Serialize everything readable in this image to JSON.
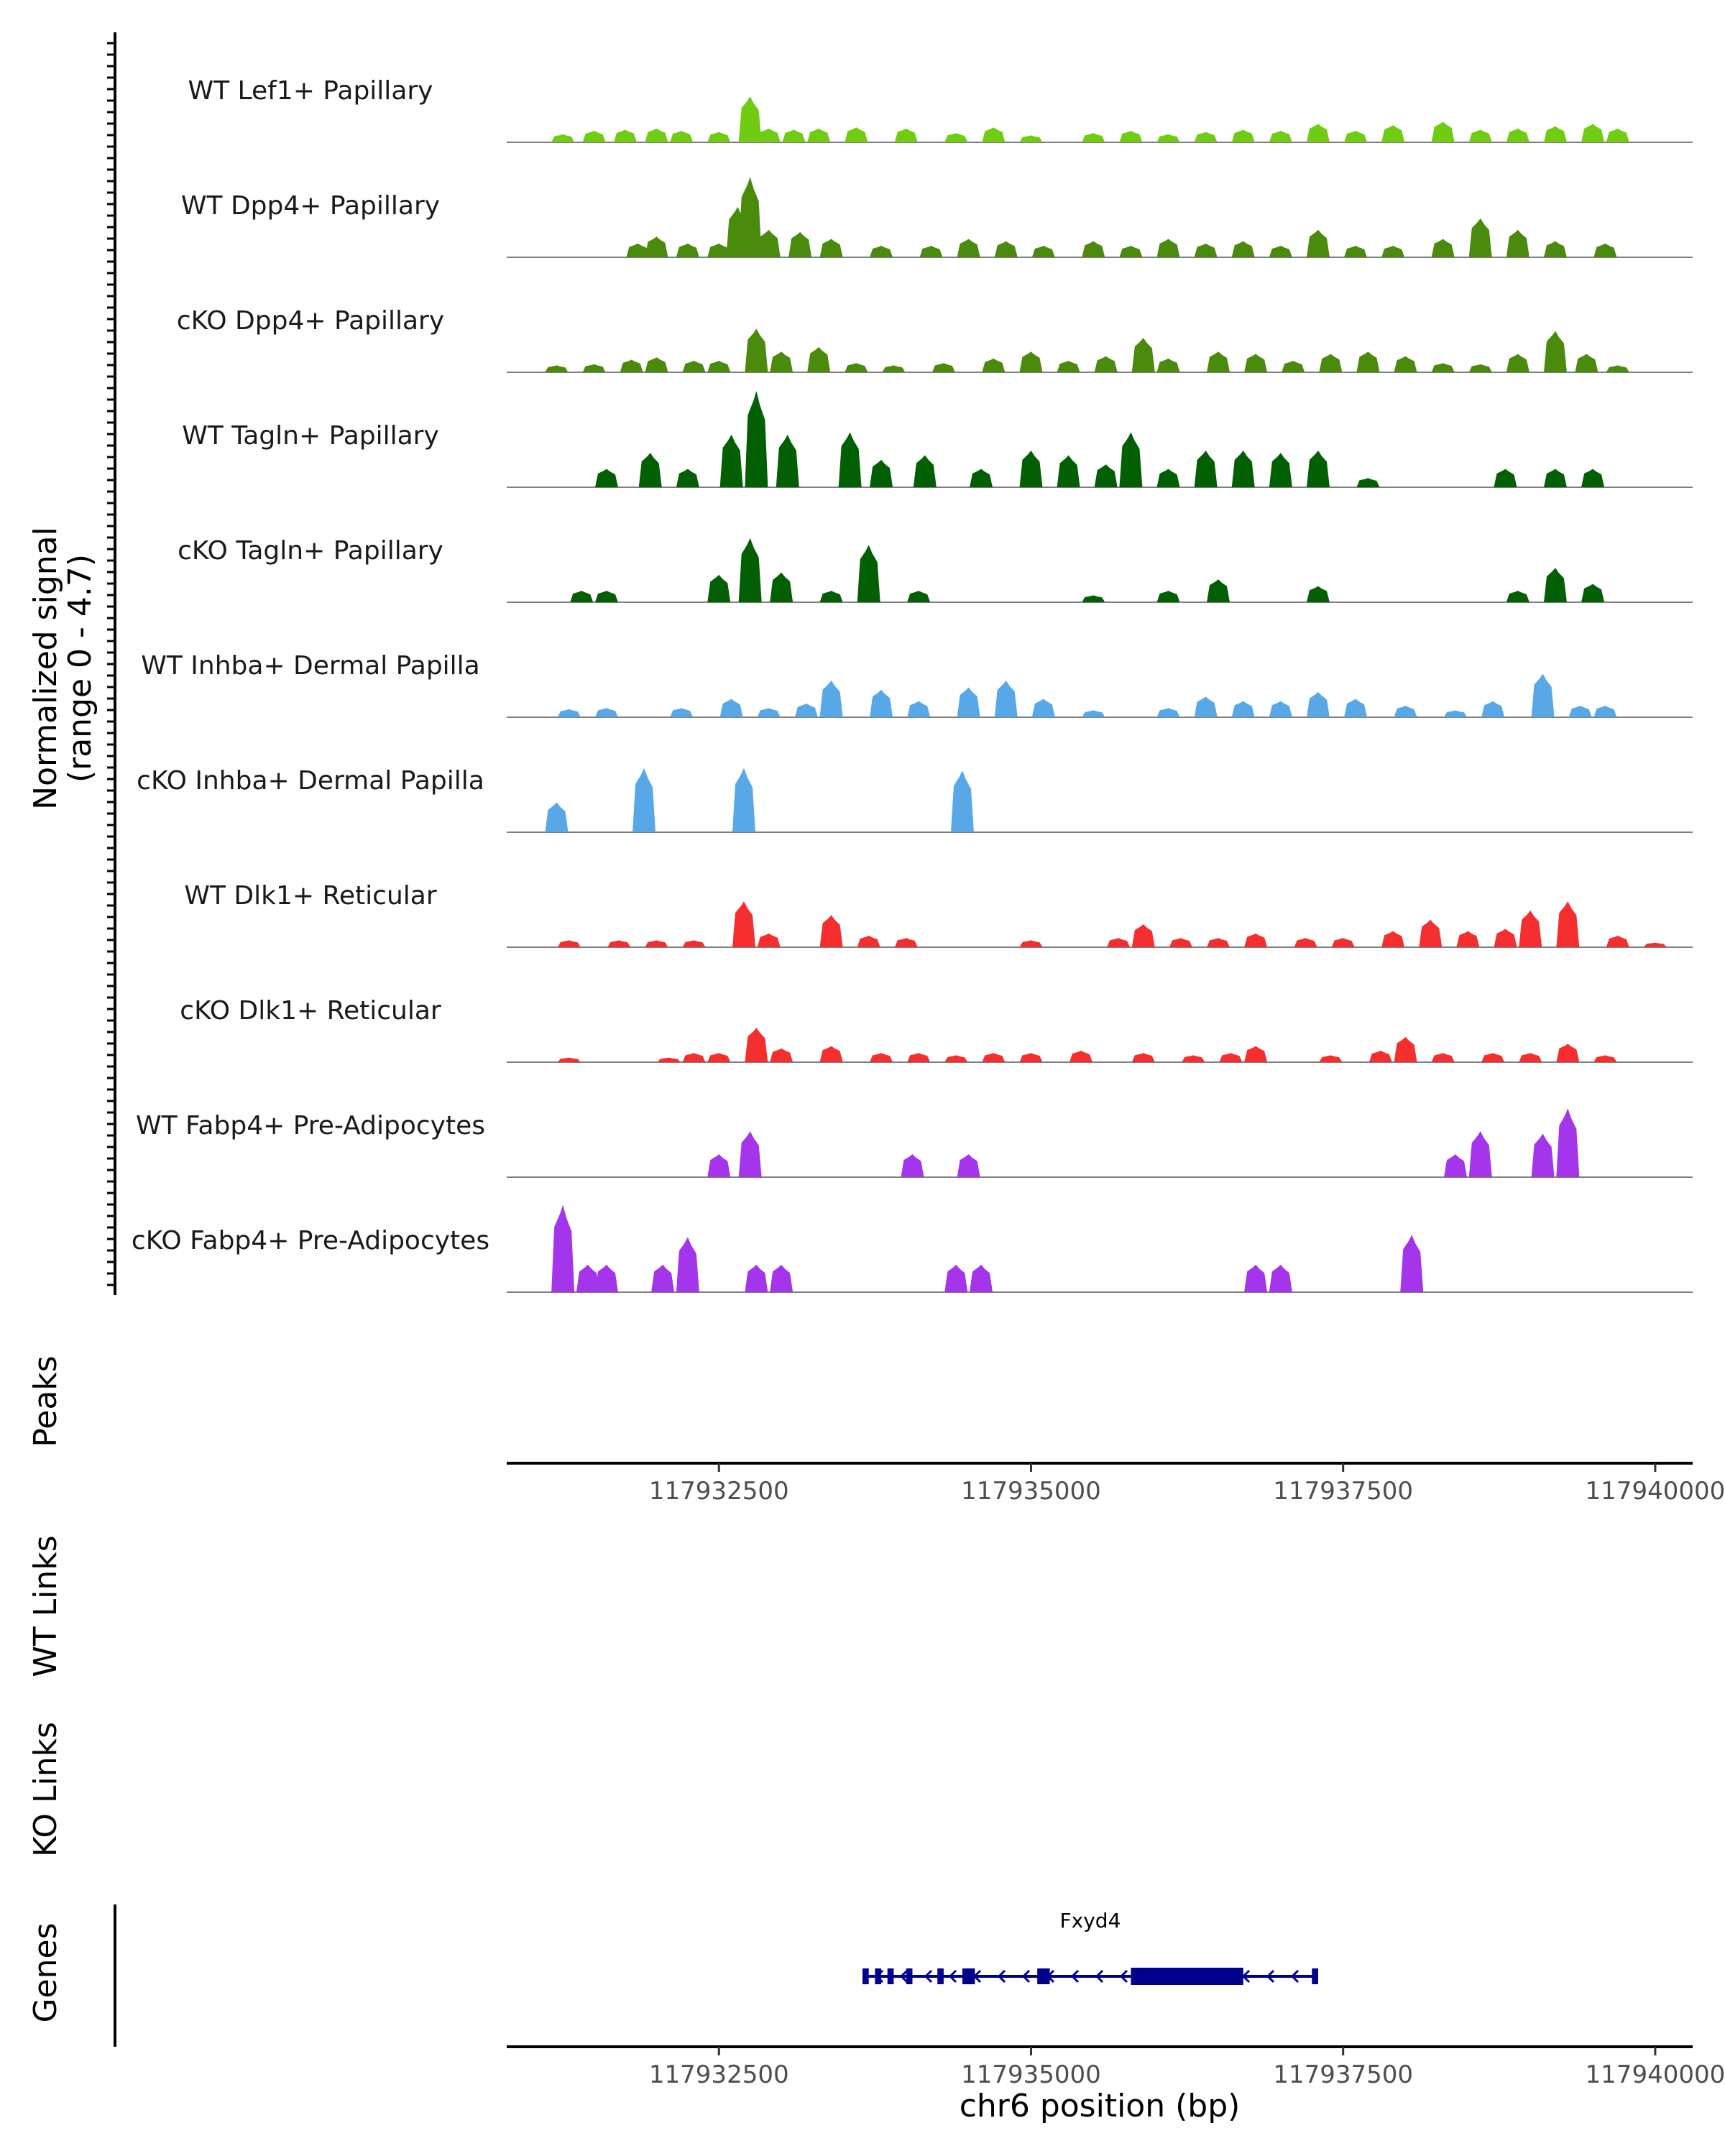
{
  "chart_data": {
    "type": "area",
    "title": "",
    "ylabel": "Normalized signal (range 0 - 4.7)",
    "ylabel_lines": [
      "Normalized signal",
      "(range 0 - 4.7)"
    ],
    "ylim": [
      0,
      4.7
    ],
    "xlabel": "chr6 position (bp)",
    "xlim": [
      117930800,
      117940300
    ],
    "xticks": [
      117932500,
      117935000,
      117937500,
      117940000
    ],
    "xtick_labels": [
      "117932500",
      "117935000",
      "117937500",
      "117940000"
    ],
    "track_labels": {
      "peaks": "Peaks",
      "wt_links": "WT Links",
      "ko_links": "KO Links",
      "genes": "Genes"
    },
    "series": [
      {
        "name": "WT Lef1+ Papillary",
        "color": "#6fcc12",
        "points": [
          [
            117931250,
            0.35
          ],
          [
            117931500,
            0.5
          ],
          [
            117931750,
            0.55
          ],
          [
            117932000,
            0.6
          ],
          [
            117932200,
            0.5
          ],
          [
            117932500,
            0.45
          ],
          [
            117932750,
            2.0
          ],
          [
            117932900,
            0.6
          ],
          [
            117933100,
            0.55
          ],
          [
            117933300,
            0.6
          ],
          [
            117933600,
            0.65
          ],
          [
            117934000,
            0.6
          ],
          [
            117934400,
            0.4
          ],
          [
            117934700,
            0.65
          ],
          [
            117935000,
            0.3
          ],
          [
            117935500,
            0.4
          ],
          [
            117935800,
            0.5
          ],
          [
            117936100,
            0.35
          ],
          [
            117936400,
            0.45
          ],
          [
            117936700,
            0.55
          ],
          [
            117937000,
            0.5
          ],
          [
            117937300,
            0.8
          ],
          [
            117937600,
            0.5
          ],
          [
            117937900,
            0.75
          ],
          [
            117938300,
            0.9
          ],
          [
            117938600,
            0.55
          ],
          [
            117938900,
            0.6
          ],
          [
            117939200,
            0.7
          ],
          [
            117939500,
            0.8
          ],
          [
            117939700,
            0.6
          ]
        ]
      },
      {
        "name": "WT Dpp4+ Papillary",
        "color": "#4a8a0c",
        "points": [
          [
            117931850,
            0.6
          ],
          [
            117932000,
            0.9
          ],
          [
            117932250,
            0.6
          ],
          [
            117932500,
            0.6
          ],
          [
            117932650,
            2.2
          ],
          [
            117932750,
            3.5
          ],
          [
            117932900,
            1.2
          ],
          [
            117933150,
            1.1
          ],
          [
            117933400,
            0.8
          ],
          [
            117933800,
            0.5
          ],
          [
            117934200,
            0.5
          ],
          [
            117934500,
            0.8
          ],
          [
            117934800,
            0.7
          ],
          [
            117935100,
            0.5
          ],
          [
            117935500,
            0.7
          ],
          [
            117935800,
            0.5
          ],
          [
            117936100,
            0.8
          ],
          [
            117936400,
            0.6
          ],
          [
            117936700,
            0.7
          ],
          [
            117937000,
            0.5
          ],
          [
            117937300,
            1.2
          ],
          [
            117937600,
            0.5
          ],
          [
            117937900,
            0.5
          ],
          [
            117938300,
            0.8
          ],
          [
            117938600,
            1.7
          ],
          [
            117938900,
            1.2
          ],
          [
            117939200,
            0.7
          ],
          [
            117939600,
            0.6
          ]
        ]
      },
      {
        "name": "cKO Dpp4+ Papillary",
        "color": "#4a8a0c",
        "points": [
          [
            117931200,
            0.3
          ],
          [
            117931500,
            0.35
          ],
          [
            117931800,
            0.55
          ],
          [
            117932000,
            0.65
          ],
          [
            117932300,
            0.5
          ],
          [
            117932500,
            0.5
          ],
          [
            117932800,
            1.9
          ],
          [
            117933000,
            0.9
          ],
          [
            117933300,
            1.1
          ],
          [
            117933600,
            0.4
          ],
          [
            117933900,
            0.3
          ],
          [
            117934300,
            0.4
          ],
          [
            117934700,
            0.6
          ],
          [
            117935000,
            0.9
          ],
          [
            117935300,
            0.5
          ],
          [
            117935600,
            0.7
          ],
          [
            117935900,
            1.5
          ],
          [
            117936100,
            0.6
          ],
          [
            117936500,
            0.9
          ],
          [
            117936800,
            0.8
          ],
          [
            117937100,
            0.5
          ],
          [
            117937400,
            0.8
          ],
          [
            117937700,
            0.9
          ],
          [
            117938000,
            0.7
          ],
          [
            117938300,
            0.4
          ],
          [
            117938600,
            0.35
          ],
          [
            117938900,
            0.8
          ],
          [
            117939200,
            1.8
          ],
          [
            117939450,
            0.8
          ],
          [
            117939700,
            0.3
          ]
        ]
      },
      {
        "name": "WT Tagln+ Papillary",
        "color": "#035f03",
        "points": [
          [
            117931600,
            0.8
          ],
          [
            117931950,
            1.5
          ],
          [
            117932250,
            0.8
          ],
          [
            117932600,
            2.3
          ],
          [
            117932800,
            4.2
          ],
          [
            117933050,
            2.3
          ],
          [
            117933550,
            2.4
          ],
          [
            117933800,
            1.2
          ],
          [
            117934150,
            1.4
          ],
          [
            117934600,
            0.8
          ],
          [
            117935000,
            1.6
          ],
          [
            117935300,
            1.4
          ],
          [
            117935600,
            1.0
          ],
          [
            117935800,
            2.4
          ],
          [
            117936100,
            0.8
          ],
          [
            117936400,
            1.6
          ],
          [
            117936700,
            1.6
          ],
          [
            117937000,
            1.5
          ],
          [
            117937300,
            1.6
          ],
          [
            117937700,
            0.4
          ],
          [
            117938800,
            0.8
          ],
          [
            117939200,
            0.8
          ],
          [
            117939500,
            0.8
          ]
        ]
      },
      {
        "name": "cKO Tagln+ Papillary",
        "color": "#035f03",
        "points": [
          [
            117931400,
            0.5
          ],
          [
            117931600,
            0.5
          ],
          [
            117932500,
            1.2
          ],
          [
            117932750,
            2.8
          ],
          [
            117933000,
            1.3
          ],
          [
            117933400,
            0.5
          ],
          [
            117933700,
            2.5
          ],
          [
            117934100,
            0.5
          ],
          [
            117935500,
            0.3
          ],
          [
            117936100,
            0.5
          ],
          [
            117936500,
            1.0
          ],
          [
            117937300,
            0.7
          ],
          [
            117938900,
            0.5
          ],
          [
            117939200,
            1.5
          ],
          [
            117939500,
            0.8
          ]
        ]
      },
      {
        "name": "WT Inhba+ Dermal Papilla",
        "color": "#58a8e8",
        "points": [
          [
            117931300,
            0.35
          ],
          [
            117931600,
            0.4
          ],
          [
            117932200,
            0.4
          ],
          [
            117932600,
            0.8
          ],
          [
            117932900,
            0.4
          ],
          [
            117933200,
            0.6
          ],
          [
            117933400,
            1.6
          ],
          [
            117933800,
            1.2
          ],
          [
            117934100,
            0.7
          ],
          [
            117934500,
            1.3
          ],
          [
            117934800,
            1.6
          ],
          [
            117935100,
            0.8
          ],
          [
            117935500,
            0.3
          ],
          [
            117936100,
            0.4
          ],
          [
            117936400,
            0.9
          ],
          [
            117936700,
            0.7
          ],
          [
            117937000,
            0.7
          ],
          [
            117937300,
            1.1
          ],
          [
            117937600,
            0.8
          ],
          [
            117938000,
            0.5
          ],
          [
            117938400,
            0.3
          ],
          [
            117938700,
            0.7
          ],
          [
            117939100,
            1.9
          ],
          [
            117939400,
            0.5
          ],
          [
            117939600,
            0.5
          ]
        ]
      },
      {
        "name": "cKO Inhba+ Dermal Papilla",
        "color": "#58a8e8",
        "points": [
          [
            117931200,
            1.3
          ],
          [
            117931900,
            2.8
          ],
          [
            117932700,
            2.8
          ],
          [
            117934450,
            2.7
          ]
        ]
      },
      {
        "name": "WT Dlk1+ Reticular",
        "color": "#f52f2f",
        "points": [
          [
            117931300,
            0.3
          ],
          [
            117931700,
            0.3
          ],
          [
            117932000,
            0.3
          ],
          [
            117932300,
            0.3
          ],
          [
            117932700,
            2.0
          ],
          [
            117932900,
            0.6
          ],
          [
            117933400,
            1.4
          ],
          [
            117933700,
            0.5
          ],
          [
            117934000,
            0.4
          ],
          [
            117935000,
            0.3
          ],
          [
            117935700,
            0.4
          ],
          [
            117935900,
            1.0
          ],
          [
            117936200,
            0.4
          ],
          [
            117936500,
            0.4
          ],
          [
            117936800,
            0.6
          ],
          [
            117937200,
            0.4
          ],
          [
            117937500,
            0.4
          ],
          [
            117937900,
            0.7
          ],
          [
            117938200,
            1.2
          ],
          [
            117938500,
            0.7
          ],
          [
            117938800,
            0.8
          ],
          [
            117939000,
            1.6
          ],
          [
            117939300,
            2.0
          ],
          [
            117939700,
            0.5
          ],
          [
            117940000,
            0.2
          ]
        ]
      },
      {
        "name": "cKO Dlk1+ Reticular",
        "color": "#f52f2f",
        "points": [
          [
            117931300,
            0.2
          ],
          [
            117932100,
            0.2
          ],
          [
            117932300,
            0.4
          ],
          [
            117932500,
            0.4
          ],
          [
            117932800,
            1.5
          ],
          [
            117933000,
            0.6
          ],
          [
            117933400,
            0.7
          ],
          [
            117933800,
            0.4
          ],
          [
            117934100,
            0.4
          ],
          [
            117934400,
            0.3
          ],
          [
            117934700,
            0.4
          ],
          [
            117935000,
            0.4
          ],
          [
            117935400,
            0.5
          ],
          [
            117935900,
            0.4
          ],
          [
            117936300,
            0.3
          ],
          [
            117936600,
            0.4
          ],
          [
            117936800,
            0.7
          ],
          [
            117937400,
            0.3
          ],
          [
            117937800,
            0.5
          ],
          [
            117938000,
            1.1
          ],
          [
            117938300,
            0.4
          ],
          [
            117938700,
            0.4
          ],
          [
            117939000,
            0.4
          ],
          [
            117939300,
            0.8
          ],
          [
            117939600,
            0.3
          ]
        ]
      },
      {
        "name": "WT Fabp4+ Pre-Adipocytes",
        "color": "#a435ea",
        "points": [
          [
            117932500,
            1.0
          ],
          [
            117932750,
            2.0
          ],
          [
            117934050,
            1.0
          ],
          [
            117934500,
            1.0
          ],
          [
            117938400,
            1.0
          ],
          [
            117938600,
            2.0
          ],
          [
            117939100,
            1.9
          ],
          [
            117939300,
            3.0
          ]
        ]
      },
      {
        "name": "cKO Fabp4+ Pre-Adipocytes",
        "color": "#a435ea",
        "points": [
          [
            117931250,
            3.8
          ],
          [
            117931450,
            1.2
          ],
          [
            117931600,
            1.2
          ],
          [
            117932050,
            1.2
          ],
          [
            117932250,
            2.4
          ],
          [
            117932800,
            1.2
          ],
          [
            117933000,
            1.2
          ],
          [
            117934400,
            1.2
          ],
          [
            117934600,
            1.2
          ],
          [
            117936800,
            1.2
          ],
          [
            117937000,
            1.2
          ],
          [
            117938050,
            2.5
          ]
        ]
      }
    ]
  },
  "genes": [
    {
      "name": "Fxyd4",
      "strand": "-",
      "start": 117933650,
      "end": 117937300,
      "exons": [
        [
          117933650,
          117933700
        ],
        [
          117933750,
          117933800
        ],
        [
          117933850,
          117933900
        ],
        [
          117934000,
          117934050
        ],
        [
          117934250,
          117934300
        ],
        [
          117934450,
          117934550
        ],
        [
          117935050,
          117935150
        ],
        [
          117935800,
          117936700
        ],
        [
          117937250,
          117937300
        ]
      ]
    }
  ]
}
